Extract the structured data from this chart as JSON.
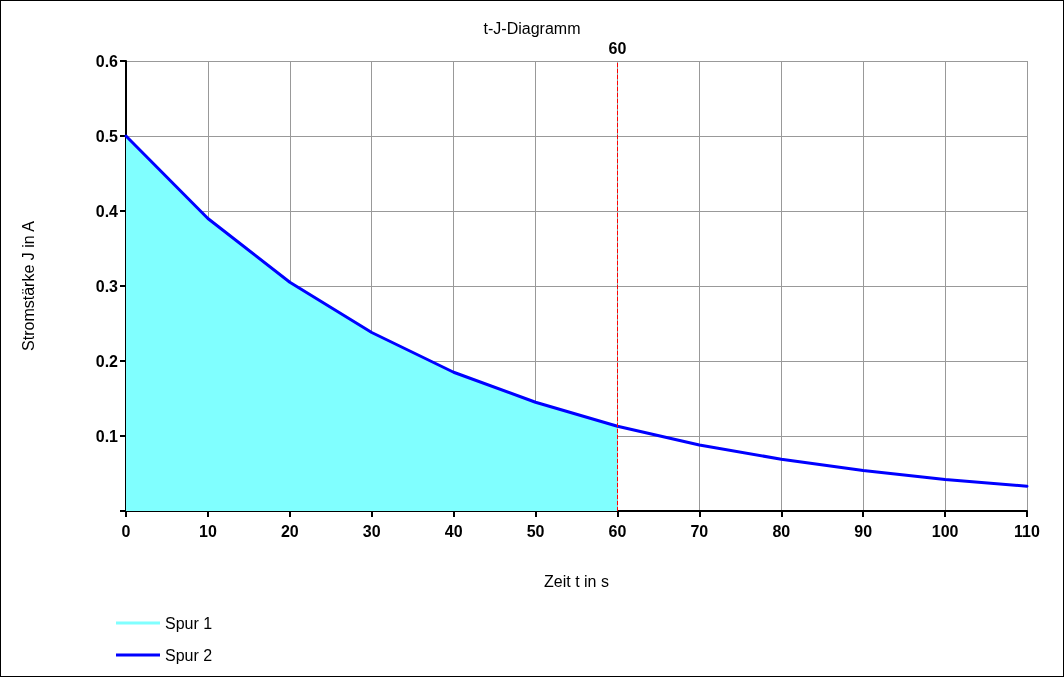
{
  "chart_data": {
    "type": "line",
    "title": "t-J-Diagramm",
    "xlabel": "Zeit t in s",
    "ylabel": "Stromstärke J in A",
    "series": [
      {
        "name": "Spur 1",
        "type": "area",
        "color": "#80ffff",
        "x": [
          0,
          10,
          20,
          30,
          40,
          50,
          60
        ],
        "values": [
          0.5,
          0.39,
          0.305,
          0.238,
          0.185,
          0.145,
          0.113
        ]
      },
      {
        "name": "Spur 2",
        "color": "#0000ff",
        "x": [
          0,
          10,
          20,
          30,
          40,
          50,
          60,
          70,
          80,
          90,
          100,
          110
        ],
        "values": [
          0.5,
          0.39,
          0.305,
          0.238,
          0.185,
          0.145,
          0.113,
          0.088,
          0.069,
          0.054,
          0.042,
          0.033
        ]
      }
    ],
    "xlim": [
      0,
      110
    ],
    "xticks": [
      0,
      10,
      20,
      30,
      40,
      50,
      60,
      70,
      80,
      90,
      100,
      110
    ],
    "ylim": [
      0,
      0.6
    ],
    "yticks": [
      {
        "value": 0,
        "label": null
      },
      0.1,
      0.2,
      0.3,
      0.4,
      0.5,
      0.6
    ],
    "ref_lines": [
      {
        "axis": "x",
        "value": 60,
        "label": "60",
        "color": "#ff0000",
        "line_style": "dashed"
      }
    ],
    "grid": true,
    "legend": "bottom left",
    "marker": "none",
    "line_style": "solid"
  }
}
